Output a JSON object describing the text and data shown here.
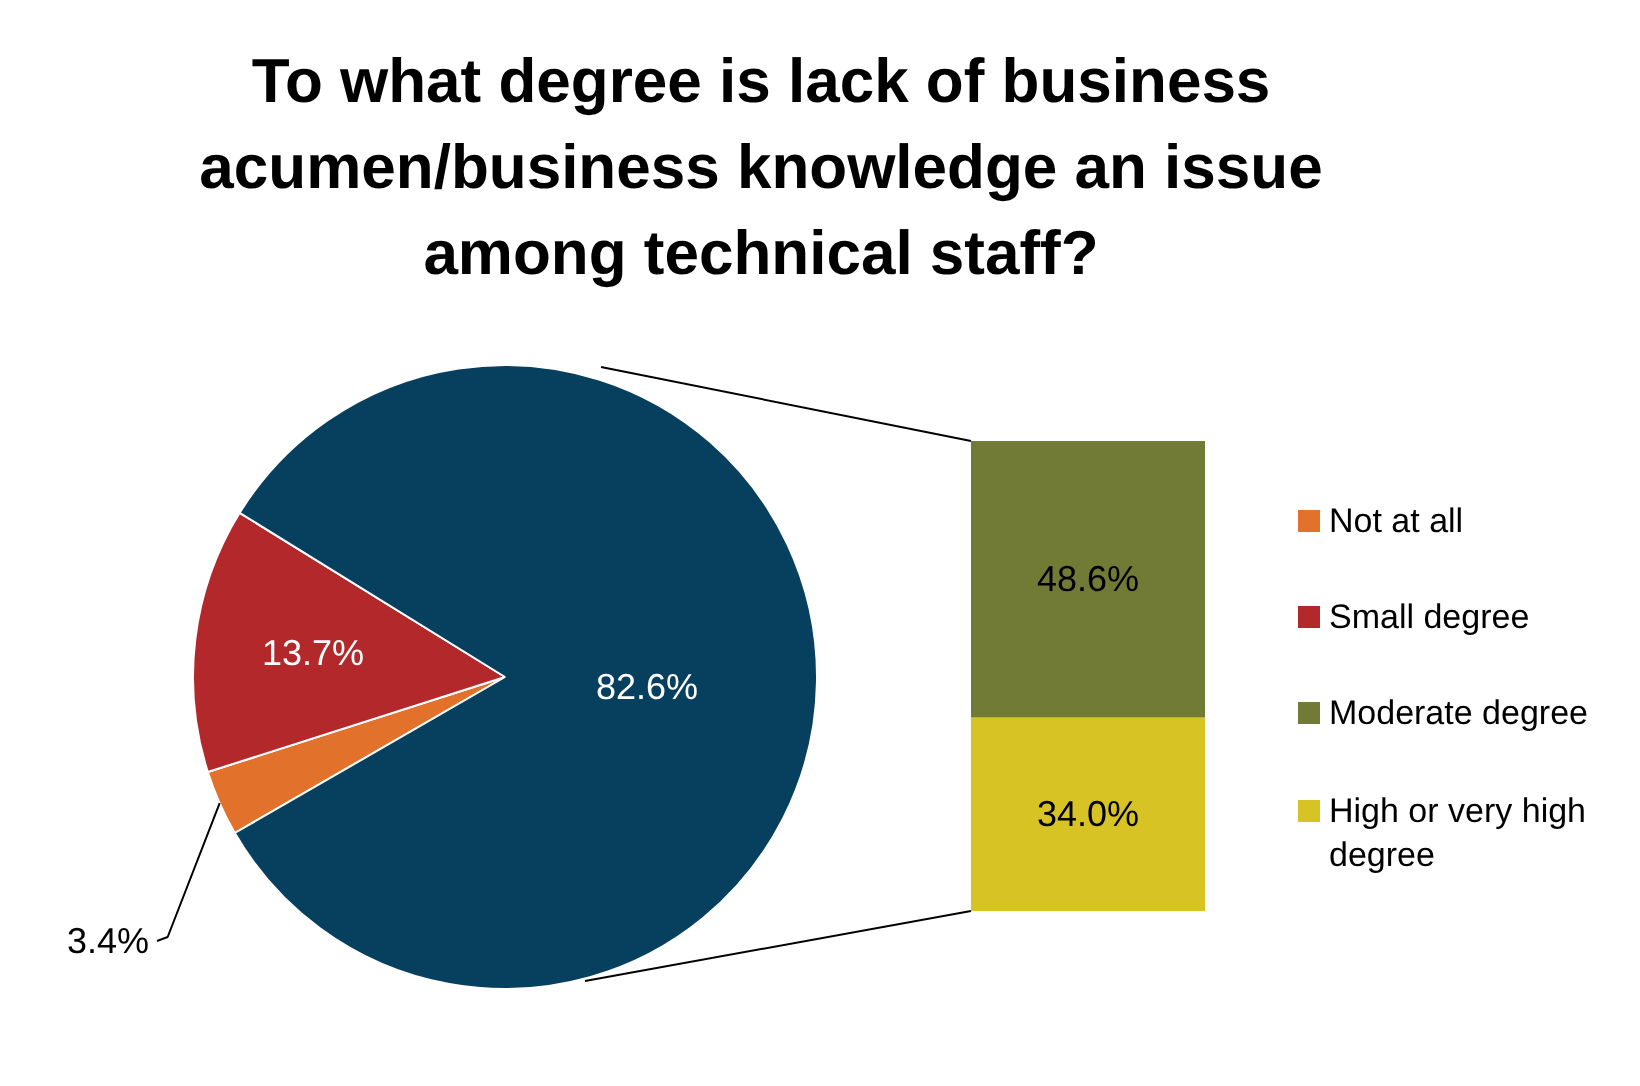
{
  "chart_data": [
    {
      "type": "pie",
      "title": "To what degree is lack of business acumen/business knowledge an issue among technical staff?",
      "categories": [
        "Not at all",
        "Small degree",
        null
      ],
      "values": [
        3.4,
        13.7,
        82.6
      ],
      "colors": [
        "#e2712b",
        "#b3282b",
        "#07405f"
      ],
      "value_labels": [
        "3.4%",
        "13.7%",
        "82.6%"
      ],
      "legend": "right"
    },
    {
      "type": "bar",
      "stacked": true,
      "categories": [
        null
      ],
      "legend": "right",
      "series": [
        {
          "name": "High or very high degree",
          "color": "#d8c325",
          "values": [
            34.0
          ],
          "value_labels": [
            "34.0%"
          ]
        },
        {
          "name": "Moderate degree",
          "color": "#727b36",
          "values": [
            48.6
          ],
          "value_labels": [
            "48.6%"
          ]
        }
      ]
    }
  ]
}
